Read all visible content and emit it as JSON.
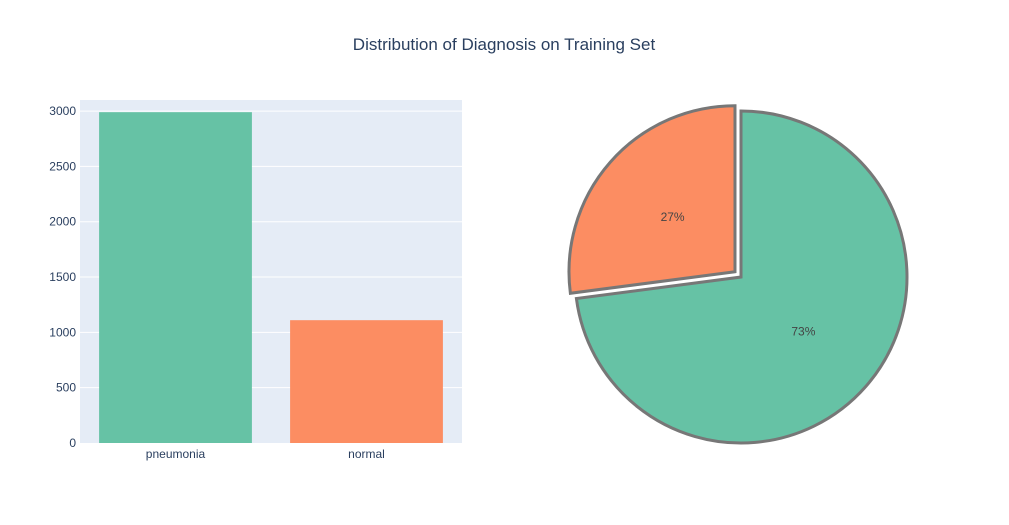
{
  "title": "Distribution of Diagnosis on Training Set",
  "colors": {
    "pneumonia": "#66c2a5",
    "normal": "#fc8d62",
    "plot_bg": "#e5ecf6",
    "grid": "#ffffff",
    "pie_border": "#777777",
    "text": "#2a3f5f"
  },
  "chart_data": [
    {
      "type": "bar",
      "categories": [
        "pneumonia",
        "normal"
      ],
      "values": [
        2990,
        1110
      ],
      "ylim": [
        0,
        3100
      ],
      "yticks": [
        0,
        500,
        1000,
        1500,
        2000,
        2500,
        3000
      ],
      "grid": true
    },
    {
      "type": "pie",
      "labels": [
        "pneumonia",
        "normal"
      ],
      "values": [
        2990,
        1110
      ],
      "percent_labels": [
        "73%",
        "27%"
      ],
      "pulled_slice": "normal"
    }
  ]
}
